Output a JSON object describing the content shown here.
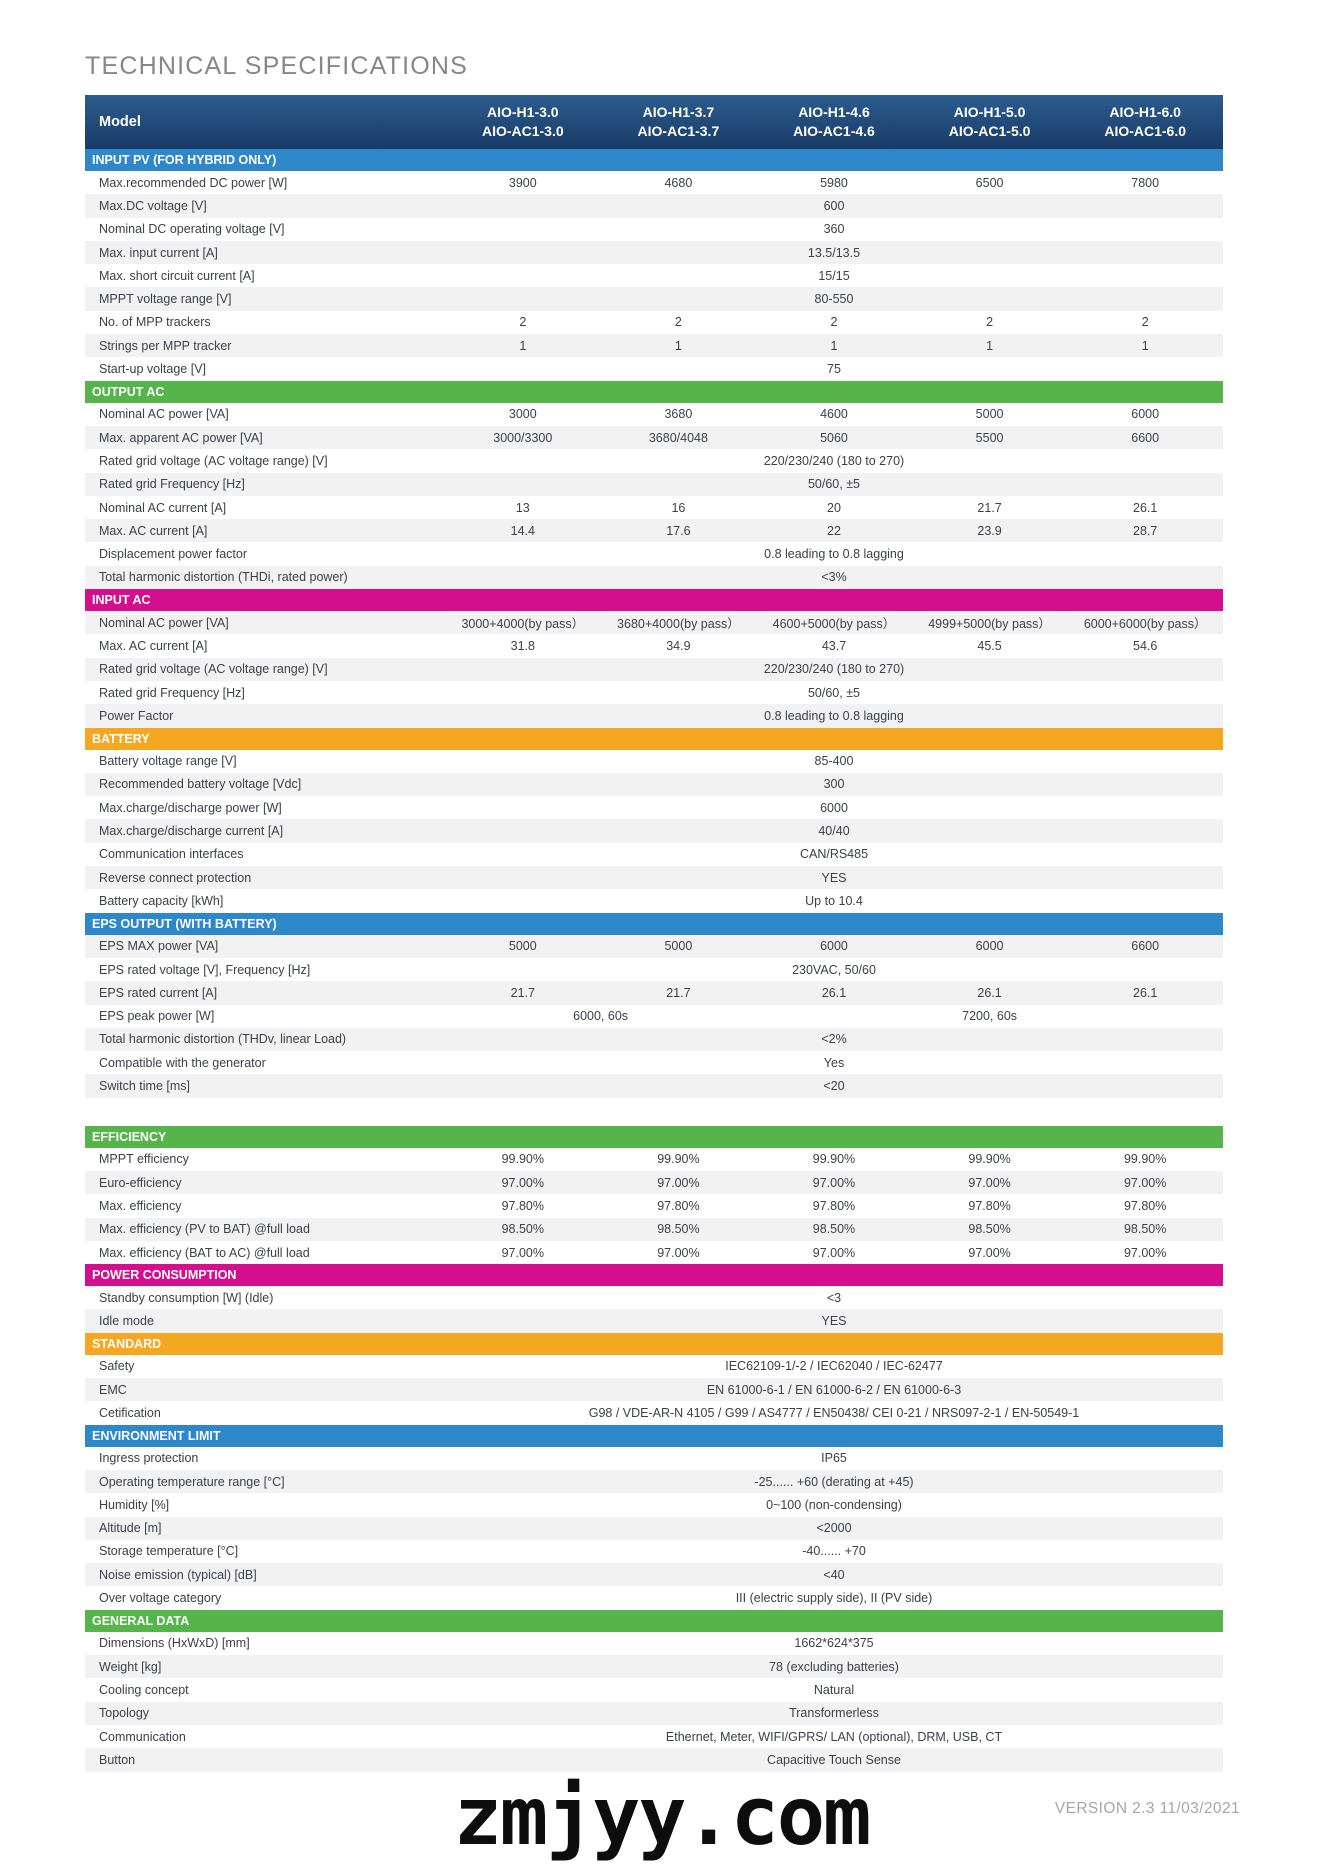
{
  "page": {
    "title": "TECHNICAL SPECIFICATIONS",
    "watermark": "zmjyy.com",
    "version": "VERSION 2.3 11/03/2021"
  },
  "colors": {
    "header_navy_top": "#2b5c8e",
    "header_navy_bottom": "#1a3b66",
    "blue": "#2e87c9",
    "green": "#55b54a",
    "magenta": "#d30f8d",
    "orange": "#f6a722",
    "stripe": "#f2f2f3"
  },
  "table": {
    "header": {
      "model_label": "Model",
      "models": [
        {
          "line1": "AIO-H1-3.0",
          "line2": "AIO-AC1-3.0"
        },
        {
          "line1": "AIO-H1-3.7",
          "line2": "AIO-AC1-3.7"
        },
        {
          "line1": "AIO-H1-4.6",
          "line2": "AIO-AC1-4.6"
        },
        {
          "line1": "AIO-H1-5.0",
          "line2": "AIO-AC1-5.0"
        },
        {
          "line1": "AIO-H1-6.0",
          "line2": "AIO-AC1-6.0"
        }
      ]
    },
    "sections": [
      {
        "title": "INPUT PV (FOR HYBRID ONLY)",
        "color": "blue",
        "rows": [
          {
            "label": "Max.recommended DC power [W]",
            "cells": [
              "3900",
              "4680",
              "5980",
              "6500",
              "7800"
            ],
            "shade": false
          },
          {
            "label": "Max.DC voltage [V]",
            "span": "600",
            "shade": true
          },
          {
            "label": "Nominal DC operating voltage [V]",
            "span": "360",
            "shade": false
          },
          {
            "label": "Max. input current [A]",
            "span": "13.5/13.5",
            "shade": true
          },
          {
            "label": "Max. short circuit current [A]",
            "span": "15/15",
            "shade": false
          },
          {
            "label": "MPPT voltage range [V]",
            "span": "80-550",
            "shade": true
          },
          {
            "label": "No. of MPP trackers",
            "cells": [
              "2",
              "2",
              "2",
              "2",
              "2"
            ],
            "shade": false
          },
          {
            "label": "Strings per MPP tracker",
            "cells": [
              "1",
              "1",
              "1",
              "1",
              "1"
            ],
            "shade": true
          },
          {
            "label": "Start-up voltage [V]",
            "span": "75",
            "shade": false
          }
        ]
      },
      {
        "title": "OUTPUT AC",
        "color": "green",
        "rows": [
          {
            "label": "Nominal AC power [VA]",
            "cells": [
              "3000",
              "3680",
              "4600",
              "5000",
              "6000"
            ],
            "shade": false
          },
          {
            "label": "Max. apparent AC power [VA]",
            "cells": [
              "3000/3300",
              "3680/4048",
              "5060",
              "5500",
              "6600"
            ],
            "shade": true
          },
          {
            "label": "Rated grid voltage (AC voltage range) [V]",
            "span": "220/230/240 (180  to 270)",
            "shade": false
          },
          {
            "label": "Rated grid Frequency [Hz]",
            "span": "50/60, ±5",
            "shade": true
          },
          {
            "label": "Nominal AC current [A]",
            "cells": [
              "13",
              "16",
              "20",
              "21.7",
              "26.1"
            ],
            "shade": false
          },
          {
            "label": "Max. AC current [A]",
            "cells": [
              "14.4",
              "17.6",
              "22",
              "23.9",
              "28.7"
            ],
            "shade": true
          },
          {
            "label": "Displacement power factor",
            "span": "0.8 leading to 0.8 lagging",
            "shade": false
          },
          {
            "label": "Total harmonic distortion (THDi, rated power)",
            "span": "<3%",
            "shade": true
          }
        ]
      },
      {
        "title": "INPUT AC",
        "color": "magenta",
        "rows": [
          {
            "label": "Nominal AC power [VA]",
            "cells": [
              "3000+4000(by pass）",
              "3680+4000(by pass）",
              "4600+5000(by pass）",
              "4999+5000(by pass）",
              "6000+6000(by pass）"
            ],
            "shade": true
          },
          {
            "label": "Max. AC current [A]",
            "cells": [
              "31.8",
              "34.9",
              "43.7",
              "45.5",
              "54.6"
            ],
            "shade": false
          },
          {
            "label": "Rated grid voltage (AC voltage range) [V]",
            "span": "220/230/240  (180  to 270)",
            "shade": true
          },
          {
            "label": "Rated grid Frequency [Hz]",
            "span": "50/60, ±5",
            "shade": false
          },
          {
            "label": "Power Factor",
            "span": "0.8 leading to 0.8 lagging",
            "shade": true
          }
        ]
      },
      {
        "title": "BATTERY",
        "color": "orange",
        "rows": [
          {
            "label": "Battery voltage range [V]",
            "span": "85-400",
            "shade": false
          },
          {
            "label": "Recommended battery voltage [Vdc]",
            "span": "300",
            "shade": true
          },
          {
            "label": "Max.charge/discharge power [W]",
            "span": "6000",
            "shade": false
          },
          {
            "label": "Max.charge/discharge current [A]",
            "span": "40/40",
            "shade": true
          },
          {
            "label": "Communication interfaces",
            "span": "CAN/RS485",
            "shade": false
          },
          {
            "label": "Reverse connect protection",
            "span": "YES",
            "shade": true
          },
          {
            "label": "Battery capacity [kWh]",
            "span": "Up to 10.4",
            "shade": false
          }
        ]
      },
      {
        "title": "EPS OUTPUT (WITH BATTERY)",
        "color": "blue",
        "rows": [
          {
            "label": "EPS MAX  power [VA]",
            "cells": [
              "5000",
              "5000",
              "6000",
              "6000",
              "6600"
            ],
            "shade": true
          },
          {
            "label": "EPS rated voltage [V], Frequency [Hz]",
            "span": "230VAC, 50/60",
            "shade": false
          },
          {
            "label": "EPS rated current [A]",
            "cells": [
              "21.7",
              "21.7",
              "26.1",
              "26.1",
              "26.1"
            ],
            "shade": true
          },
          {
            "label": "EPS peak power [W]",
            "spans": [
              {
                "value": "6000, 60s",
                "cols": 2
              },
              {
                "value": "7200, 60s",
                "cols": 3
              }
            ],
            "shade": false
          },
          {
            "label": "Total harmonic distortion (THDv, linear Load)",
            "span": "<2%",
            "shade": true
          },
          {
            "label": "Compatible with the generator",
            "span": "Yes",
            "shade": false
          },
          {
            "label": "Switch time [ms]",
            "span": "<20",
            "shade": true
          }
        ]
      },
      {
        "title": "EFFICIENCY",
        "color": "green",
        "gap_before": true,
        "rows": [
          {
            "label": "MPPT efficiency",
            "cells": [
              "99.90%",
              "99.90%",
              "99.90%",
              "99.90%",
              "99.90%"
            ],
            "shade": false
          },
          {
            "label": "Euro-efficiency",
            "cells": [
              "97.00%",
              "97.00%",
              "97.00%",
              "97.00%",
              "97.00%"
            ],
            "shade": true
          },
          {
            "label": "Max. efficiency",
            "cells": [
              "97.80%",
              "97.80%",
              "97.80%",
              "97.80%",
              "97.80%"
            ],
            "shade": false
          },
          {
            "label": "Max. efficiency (PV to BAT) @full load",
            "cells": [
              "98.50%",
              "98.50%",
              "98.50%",
              "98.50%",
              "98.50%"
            ],
            "shade": true
          },
          {
            "label": "Max. efficiency (BAT to AC) @full load",
            "cells": [
              "97.00%",
              "97.00%",
              "97.00%",
              "97.00%",
              "97.00%"
            ],
            "shade": false
          }
        ]
      },
      {
        "title": "POWER CONSUMPTION",
        "color": "magenta",
        "rows": [
          {
            "label": "Standby consumption [W] (Idle)",
            "span": "<3",
            "shade": false
          },
          {
            "label": "Idle mode",
            "span": "YES",
            "shade": true
          }
        ]
      },
      {
        "title": "STANDARD",
        "color": "orange",
        "rows": [
          {
            "label": "Safety",
            "span": "IEC62109-1/-2 / IEC62040 / IEC-62477",
            "shade": false
          },
          {
            "label": "EMC",
            "span": "EN 61000-6-1 / EN 61000-6-2 / EN 61000-6-3",
            "shade": true
          },
          {
            "label": "Cetification",
            "span": "G98 /  VDE-AR-N 4105 / G99 / AS4777 / EN50438/ CEI 0-21 / NRS097-2-1 / EN-50549-1",
            "shade": false
          }
        ]
      },
      {
        "title": "ENVIRONMENT LIMIT",
        "color": "blue",
        "rows": [
          {
            "label": "Ingress protection",
            "span": "IP65",
            "shade": false
          },
          {
            "label": "Operating temperature range [°C]",
            "span": "-25...... +60 (derating at +45)",
            "shade": true
          },
          {
            "label": "Humidity [%]",
            "span": "0~100 (non-condensing)",
            "shade": false
          },
          {
            "label": "Altitude [m]",
            "span": "<2000",
            "shade": true
          },
          {
            "label": "Storage temperature [°C]",
            "span": "-40...... +70",
            "shade": false
          },
          {
            "label": "Noise emission (typical) [dB]",
            "span": "<40",
            "shade": true
          },
          {
            "label": "Over voltage category",
            "span": "III (electric supply side), II (PV side)",
            "shade": false
          }
        ]
      },
      {
        "title": "GENERAL DATA",
        "color": "green",
        "rows": [
          {
            "label": "Dimensions (HxWxD) [mm]",
            "span": "1662*624*375",
            "shade": false
          },
          {
            "label": "Weight [kg]",
            "span": "78 (excluding batteries)",
            "shade": true
          },
          {
            "label": "Cooling concept",
            "span": "Natural",
            "shade": false
          },
          {
            "label": "Topology",
            "span": "Transformerless",
            "shade": true
          },
          {
            "label": "Communication",
            "span": "Ethernet, Meter, WIFI/GPRS/ LAN (optional), DRM, USB, CT",
            "shade": false
          },
          {
            "label": "Button",
            "span": "Capacitive Touch Sense",
            "shade": true
          }
        ]
      }
    ]
  }
}
